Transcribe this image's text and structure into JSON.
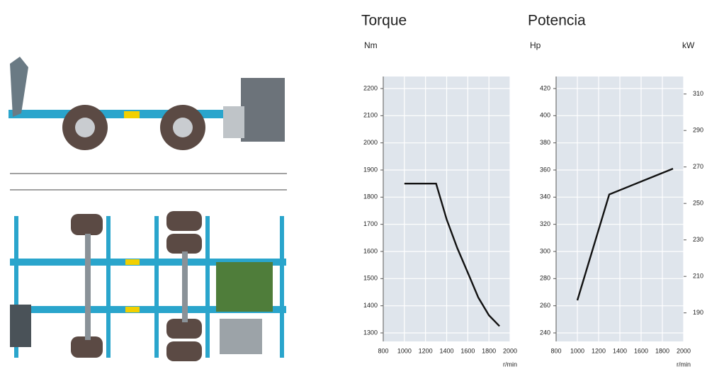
{
  "chart_data": [
    {
      "type": "line",
      "title": "Torque",
      "ylabel": "Nm",
      "xlabel": "r/min",
      "x": [
        1000,
        1300,
        1400,
        1500,
        1600,
        1700,
        1800,
        1900
      ],
      "values": [
        1850,
        1850,
        1718,
        1613,
        1522,
        1430,
        1365,
        1325
      ],
      "color": "#111111",
      "xlim": [
        800,
        2000
      ],
      "xticks": [
        800,
        1000,
        1200,
        1400,
        1600,
        1800,
        2000
      ],
      "ylim": [
        1300,
        2200
      ],
      "yticks": [
        1300,
        1400,
        1500,
        1600,
        1700,
        1800,
        1900,
        2000,
        2100,
        2200
      ],
      "grid": true
    },
    {
      "type": "line",
      "title": "Potencia",
      "ylabel": "Hp",
      "y2label": "kW",
      "xlabel": "r/min",
      "x": [
        1000,
        1300,
        1900
      ],
      "values": [
        264,
        342,
        361
      ],
      "color": "#111111",
      "xlim": [
        800,
        2000
      ],
      "xticks": [
        800,
        1000,
        1200,
        1400,
        1600,
        1800,
        2000
      ],
      "ylim": [
        240,
        420
      ],
      "yticks": [
        240,
        260,
        280,
        300,
        320,
        340,
        360,
        380,
        400,
        420
      ],
      "y2lim": [
        179,
        313
      ],
      "y2ticks": [
        190,
        210,
        230,
        250,
        270,
        290,
        310
      ],
      "grid": true
    }
  ]
}
